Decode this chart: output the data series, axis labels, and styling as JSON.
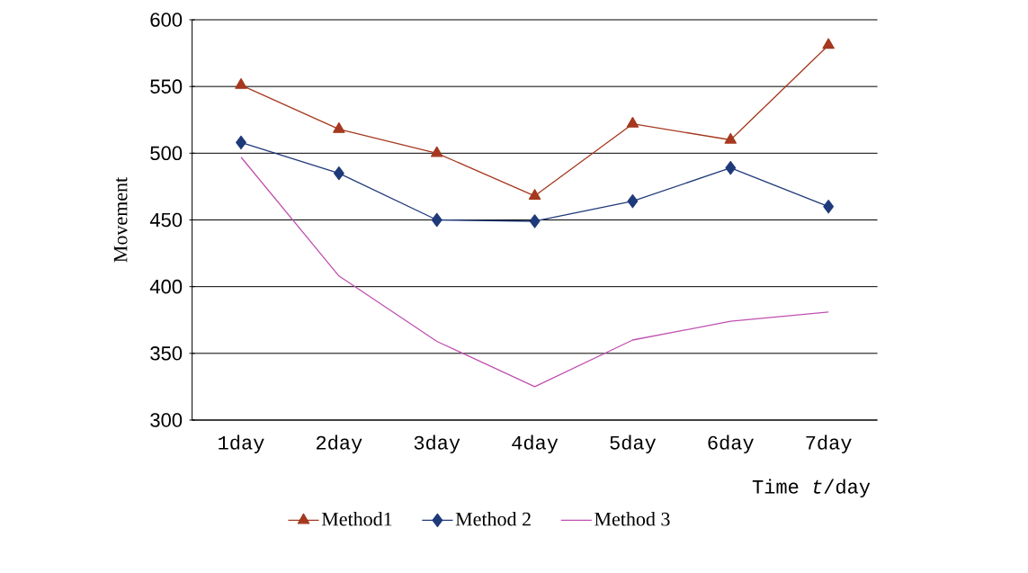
{
  "chart_data": {
    "type": "line",
    "ylabel": "Movement",
    "xlabel": "Time *t*/day",
    "categories": [
      "1day",
      "2day",
      "3day",
      "4day",
      "5day",
      "6day",
      "7day"
    ],
    "series": [
      {
        "name": "Method1",
        "color": "#a5381e",
        "marker": "triangle",
        "values": [
          551,
          518,
          500,
          468,
          522,
          510,
          581
        ]
      },
      {
        "name": "Method 2",
        "color": "#1f3a7a",
        "marker": "diamond",
        "values": [
          508,
          485,
          450,
          449,
          464,
          489,
          460
        ]
      },
      {
        "name": "Method 3",
        "color": "#c050b0",
        "marker": "none",
        "values": [
          497,
          408,
          359,
          325,
          360,
          374,
          381
        ]
      }
    ],
    "ylim": [
      300,
      600
    ],
    "yticks": [
      300,
      350,
      400,
      450,
      500,
      550,
      600
    ],
    "grid": "y",
    "legend": "bottom"
  }
}
